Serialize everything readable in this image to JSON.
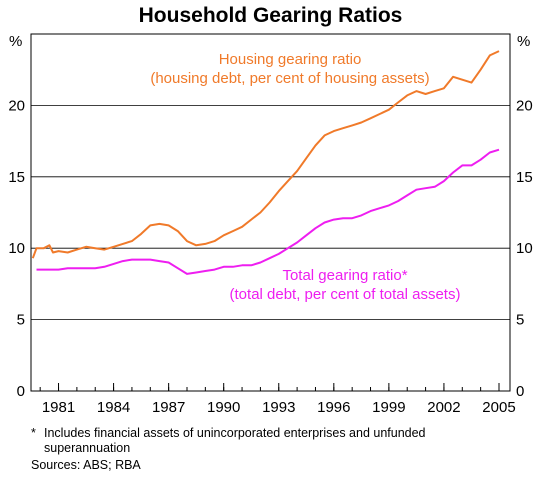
{
  "chart_data": {
    "type": "line",
    "title": "Household Gearing Ratios",
    "yunit_left": "%",
    "yunit_right": "%",
    "ylim": [
      0,
      25
    ],
    "yticks": [
      0,
      5,
      10,
      15,
      20
    ],
    "xlim": [
      1979.5,
      2005.6
    ],
    "xticks": [
      1981,
      1984,
      1987,
      1990,
      1993,
      1996,
      1999,
      2002,
      2005
    ],
    "grid": true,
    "series": [
      {
        "name": "Housing gearing ratio",
        "subtitle": "(housing debt, per cent of housing assets)",
        "color": "#f07a2a",
        "points": [
          [
            1979.6,
            9.3
          ],
          [
            1979.8,
            10.0
          ],
          [
            1980.2,
            10.0
          ],
          [
            1980.5,
            10.2
          ],
          [
            1980.7,
            9.7
          ],
          [
            1981.0,
            9.8
          ],
          [
            1981.5,
            9.7
          ],
          [
            1982.0,
            9.9
          ],
          [
            1982.5,
            10.1
          ],
          [
            1983.0,
            10.0
          ],
          [
            1983.5,
            9.9
          ],
          [
            1984.0,
            10.1
          ],
          [
            1984.5,
            10.3
          ],
          [
            1985.0,
            10.5
          ],
          [
            1985.5,
            11.0
          ],
          [
            1986.0,
            11.6
          ],
          [
            1986.5,
            11.7
          ],
          [
            1987.0,
            11.6
          ],
          [
            1987.5,
            11.2
          ],
          [
            1988.0,
            10.5
          ],
          [
            1988.5,
            10.2
          ],
          [
            1989.0,
            10.3
          ],
          [
            1989.5,
            10.5
          ],
          [
            1990.0,
            10.9
          ],
          [
            1990.5,
            11.2
          ],
          [
            1991.0,
            11.5
          ],
          [
            1991.5,
            12.0
          ],
          [
            1992.0,
            12.5
          ],
          [
            1992.5,
            13.2
          ],
          [
            1993.0,
            14.0
          ],
          [
            1993.5,
            14.7
          ],
          [
            1994.0,
            15.4
          ],
          [
            1994.5,
            16.3
          ],
          [
            1995.0,
            17.2
          ],
          [
            1995.5,
            17.9
          ],
          [
            1996.0,
            18.2
          ],
          [
            1996.5,
            18.4
          ],
          [
            1997.0,
            18.6
          ],
          [
            1997.5,
            18.8
          ],
          [
            1998.0,
            19.1
          ],
          [
            1998.5,
            19.4
          ],
          [
            1999.0,
            19.7
          ],
          [
            1999.5,
            20.2
          ],
          [
            2000.0,
            20.7
          ],
          [
            2000.5,
            21.0
          ],
          [
            2001.0,
            20.8
          ],
          [
            2001.5,
            21.0
          ],
          [
            2002.0,
            21.2
          ],
          [
            2002.5,
            22.0
          ],
          [
            2003.0,
            21.8
          ],
          [
            2003.5,
            21.6
          ],
          [
            2004.0,
            22.5
          ],
          [
            2004.5,
            23.5
          ],
          [
            2005.0,
            23.8
          ]
        ]
      },
      {
        "name": "Total gearing ratio*",
        "subtitle": "(total debt, per cent of total assets)",
        "color": "#ee1ef0",
        "points": [
          [
            1979.8,
            8.5
          ],
          [
            1980.5,
            8.5
          ],
          [
            1981.0,
            8.5
          ],
          [
            1981.5,
            8.6
          ],
          [
            1982.0,
            8.6
          ],
          [
            1982.5,
            8.6
          ],
          [
            1983.0,
            8.6
          ],
          [
            1983.5,
            8.7
          ],
          [
            1984.0,
            8.9
          ],
          [
            1984.5,
            9.1
          ],
          [
            1985.0,
            9.2
          ],
          [
            1985.5,
            9.2
          ],
          [
            1986.0,
            9.2
          ],
          [
            1986.5,
            9.1
          ],
          [
            1987.0,
            9.0
          ],
          [
            1987.5,
            8.6
          ],
          [
            1988.0,
            8.2
          ],
          [
            1988.5,
            8.3
          ],
          [
            1989.0,
            8.4
          ],
          [
            1989.5,
            8.5
          ],
          [
            1990.0,
            8.7
          ],
          [
            1990.5,
            8.7
          ],
          [
            1991.0,
            8.8
          ],
          [
            1991.5,
            8.8
          ],
          [
            1992.0,
            9.0
          ],
          [
            1992.5,
            9.3
          ],
          [
            1993.0,
            9.6
          ],
          [
            1993.5,
            10.0
          ],
          [
            1994.0,
            10.4
          ],
          [
            1994.5,
            10.9
          ],
          [
            1995.0,
            11.4
          ],
          [
            1995.5,
            11.8
          ],
          [
            1996.0,
            12.0
          ],
          [
            1996.5,
            12.1
          ],
          [
            1997.0,
            12.1
          ],
          [
            1997.5,
            12.3
          ],
          [
            1998.0,
            12.6
          ],
          [
            1998.5,
            12.8
          ],
          [
            1999.0,
            13.0
          ],
          [
            1999.5,
            13.3
          ],
          [
            2000.0,
            13.7
          ],
          [
            2000.5,
            14.1
          ],
          [
            2001.0,
            14.2
          ],
          [
            2001.5,
            14.3
          ],
          [
            2002.0,
            14.7
          ],
          [
            2002.5,
            15.3
          ],
          [
            2003.0,
            15.8
          ],
          [
            2003.5,
            15.8
          ],
          [
            2004.0,
            16.2
          ],
          [
            2004.5,
            16.7
          ],
          [
            2005.0,
            16.9
          ]
        ]
      }
    ]
  },
  "footnote": {
    "marker": "*",
    "text": "Includes financial assets of unincorporated enterprises and unfunded superannuation"
  },
  "sources": "Sources: ABS; RBA"
}
